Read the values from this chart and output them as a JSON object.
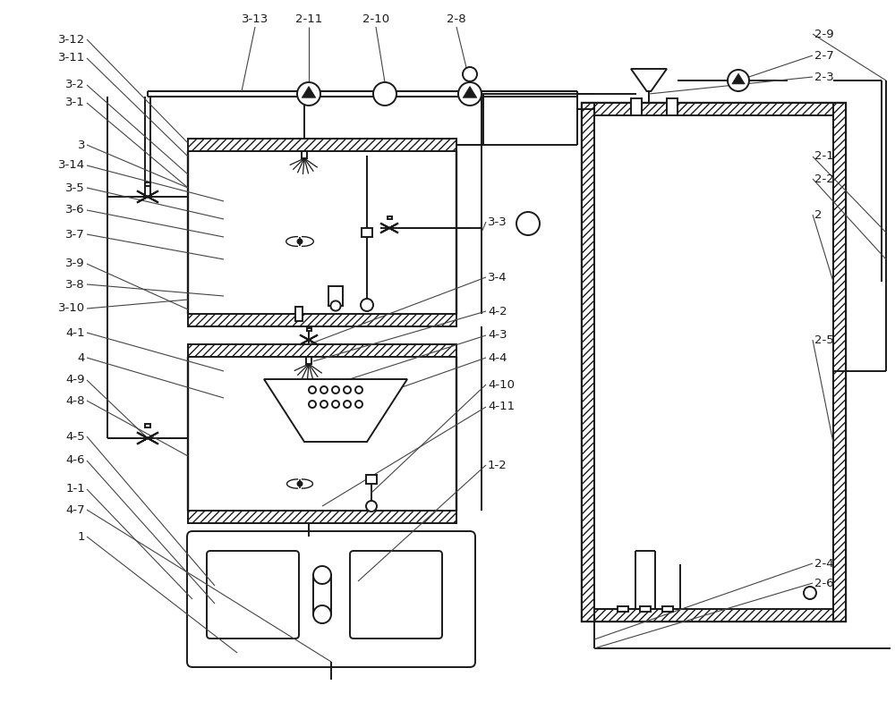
{
  "bg_color": "#ffffff",
  "line_color": "#1a1a1a",
  "fig_width": 10.0,
  "fig_height": 7.85
}
